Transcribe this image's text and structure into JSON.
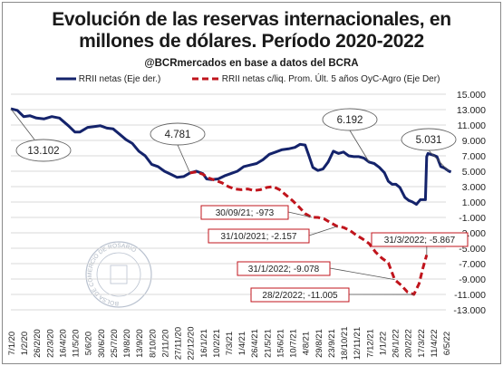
{
  "title_line1": "Evolución de las reservas internacionales, en",
  "title_line2": "millones de dólares. Período 2020-2022",
  "subtitle": "@BCRmercados en base a datos del BCRA",
  "watermark": "BOLSA DE COMERCIO DE ROSARIO",
  "colors": {
    "series1": "#14236b",
    "series2": "#c0141c",
    "grid": "#d9d9d9"
  },
  "chart_data": {
    "type": "line",
    "legend_position": "top",
    "grid": true,
    "y_axis_side": "right",
    "ylim": [
      -13000,
      15000
    ],
    "yticks": [
      15000,
      13000,
      11000,
      9000,
      7000,
      5000,
      3000,
      1000,
      -1000,
      -3000,
      -5000,
      -7000,
      -9000,
      -11000,
      -13000
    ],
    "ytick_labels": [
      "15.000",
      "13.000",
      "11.000",
      "9.000",
      "7.000",
      "5.000",
      "3.000",
      "1.000",
      "-1.000",
      "-3.000",
      "-5.000",
      "-7.000",
      "-9.000",
      "-11.000",
      "-13.000"
    ],
    "x_labels": [
      "7/1/20",
      "1/2/20",
      "26/2/20",
      "22/3/20",
      "16/4/20",
      "11/5/20",
      "5/6/20",
      "30/6/20",
      "25/7/20",
      "19/8/20",
      "13/9/20",
      "8/10/20",
      "2/11/20",
      "27/11/20",
      "22/12/20",
      "16/1/21",
      "10/2/21",
      "7/3/21",
      "1/4/21",
      "26/4/21",
      "21/5/21",
      "15/6/21",
      "10/7/21",
      "4/8/21",
      "29/8/21",
      "23/9/21",
      "18/10/21",
      "12/11/21",
      "7/12/21",
      "1/1/22",
      "26/1/22",
      "20/2/22",
      "17/3/22",
      "11/4/22",
      "6/5/22"
    ],
    "series": [
      {
        "name": "RRII netas (Eje der.)",
        "points": [
          [
            0,
            13102
          ],
          [
            0.5,
            12900
          ],
          [
            1,
            12100
          ],
          [
            1.5,
            12200
          ],
          [
            2,
            11900
          ],
          [
            2.6,
            11800
          ],
          [
            3.2,
            12100
          ],
          [
            3.8,
            11900
          ],
          [
            4.5,
            10900
          ],
          [
            5.0,
            10100
          ],
          [
            5.4,
            10100
          ],
          [
            6.0,
            10700
          ],
          [
            6.5,
            10800
          ],
          [
            7.0,
            10900
          ],
          [
            7.5,
            10600
          ],
          [
            8.0,
            10500
          ],
          [
            8.5,
            9800
          ],
          [
            9.0,
            9100
          ],
          [
            9.5,
            8600
          ],
          [
            10.0,
            7600
          ],
          [
            10.5,
            7000
          ],
          [
            11.0,
            5900
          ],
          [
            11.5,
            5600
          ],
          [
            12.0,
            5000
          ],
          [
            12.5,
            4600
          ],
          [
            13.0,
            4200
          ],
          [
            13.5,
            4300
          ],
          [
            14.0,
            4781
          ],
          [
            14.5,
            5000
          ],
          [
            15.0,
            4700
          ],
          [
            15.3,
            4000
          ],
          [
            15.7,
            3900
          ],
          [
            16.2,
            4000
          ],
          [
            16.7,
            4400
          ],
          [
            17.2,
            4700
          ],
          [
            17.7,
            5000
          ],
          [
            18.2,
            5600
          ],
          [
            18.7,
            5800
          ],
          [
            19.2,
            6000
          ],
          [
            19.7,
            6500
          ],
          [
            20.2,
            7200
          ],
          [
            20.7,
            7500
          ],
          [
            21.2,
            7800
          ],
          [
            21.7,
            7900
          ],
          [
            22.2,
            8100
          ],
          [
            22.6,
            8500
          ],
          [
            23.0,
            8400
          ],
          [
            23.3,
            7000
          ],
          [
            23.6,
            5500
          ],
          [
            24.0,
            5100
          ],
          [
            24.4,
            5300
          ],
          [
            24.8,
            6200
          ],
          [
            25.2,
            7600
          ],
          [
            25.6,
            7300
          ],
          [
            26.0,
            7500
          ],
          [
            26.4,
            7000
          ],
          [
            26.8,
            6900
          ],
          [
            27.2,
            6900
          ],
          [
            27.6,
            6700
          ],
          [
            28.0,
            6192
          ],
          [
            28.4,
            6000
          ],
          [
            28.8,
            5500
          ],
          [
            29.2,
            4800
          ],
          [
            29.5,
            3700
          ],
          [
            29.8,
            3300
          ],
          [
            30.1,
            3300
          ],
          [
            30.4,
            2900
          ],
          [
            30.8,
            1600
          ],
          [
            31.1,
            1200
          ],
          [
            31.4,
            1000
          ],
          [
            31.7,
            700
          ],
          [
            32.0,
            1300
          ],
          [
            32.4,
            1300
          ],
          [
            32.5,
            6900
          ],
          [
            32.6,
            7300
          ],
          [
            33.0,
            7100
          ],
          [
            33.3,
            6900
          ],
          [
            33.6,
            5600
          ],
          [
            33.9,
            5400
          ],
          [
            34.2,
            5031
          ],
          [
            34.4,
            4900
          ]
        ]
      },
      {
        "name": "RRII netas c/liq. Prom. Últ. 5 años OyC-Agro (Eje Der)",
        "points": [
          [
            14.0,
            4781
          ],
          [
            14.5,
            4900
          ],
          [
            15.0,
            4600
          ],
          [
            15.5,
            4100
          ],
          [
            16.0,
            3800
          ],
          [
            16.5,
            3500
          ],
          [
            17.0,
            3000
          ],
          [
            17.5,
            2700
          ],
          [
            18.0,
            2600
          ],
          [
            18.5,
            2700
          ],
          [
            19.0,
            2500
          ],
          [
            19.5,
            2600
          ],
          [
            20.0,
            2900
          ],
          [
            20.5,
            3000
          ],
          [
            21.0,
            2600
          ],
          [
            21.5,
            1900
          ],
          [
            22.0,
            1200
          ],
          [
            22.5,
            400
          ],
          [
            23.0,
            -500
          ],
          [
            23.5,
            -973
          ],
          [
            24.0,
            -1000
          ],
          [
            24.5,
            -1200
          ],
          [
            25.0,
            -1700
          ],
          [
            25.5,
            -2157
          ],
          [
            26.0,
            -2300
          ],
          [
            26.5,
            -2700
          ],
          [
            27.0,
            -3300
          ],
          [
            27.5,
            -3800
          ],
          [
            28.0,
            -4400
          ],
          [
            28.5,
            -5500
          ],
          [
            29.0,
            -6300
          ],
          [
            29.5,
            -6900
          ],
          [
            30.0,
            -9078
          ],
          [
            30.5,
            -9800
          ],
          [
            31.0,
            -10700
          ],
          [
            31.5,
            -11005
          ],
          [
            31.9,
            -9600
          ],
          [
            32.2,
            -7600
          ],
          [
            32.5,
            -5867
          ]
        ]
      }
    ],
    "annotations_oval": [
      {
        "text": "13.102",
        "x": 0,
        "y": 13102
      },
      {
        "text": "4.781",
        "x": 14.0,
        "y": 4781
      },
      {
        "text": "6.192",
        "x": 28.0,
        "y": 6192
      },
      {
        "text": "5.031",
        "x": 34.2,
        "y": 5031
      }
    ],
    "annotations_box": [
      {
        "text": "30/09/21; -973",
        "x": 23.5,
        "y": -973
      },
      {
        "text": "31/10/2021; -2.157",
        "x": 25.5,
        "y": -2157
      },
      {
        "text": "31/1/2022; -9.078",
        "x": 30.0,
        "y": -9078
      },
      {
        "text": "28/2/2022; -11.005",
        "x": 31.5,
        "y": -11005
      },
      {
        "text": "31/3/2022; -5.867",
        "x": 32.5,
        "y": -5867
      }
    ]
  }
}
